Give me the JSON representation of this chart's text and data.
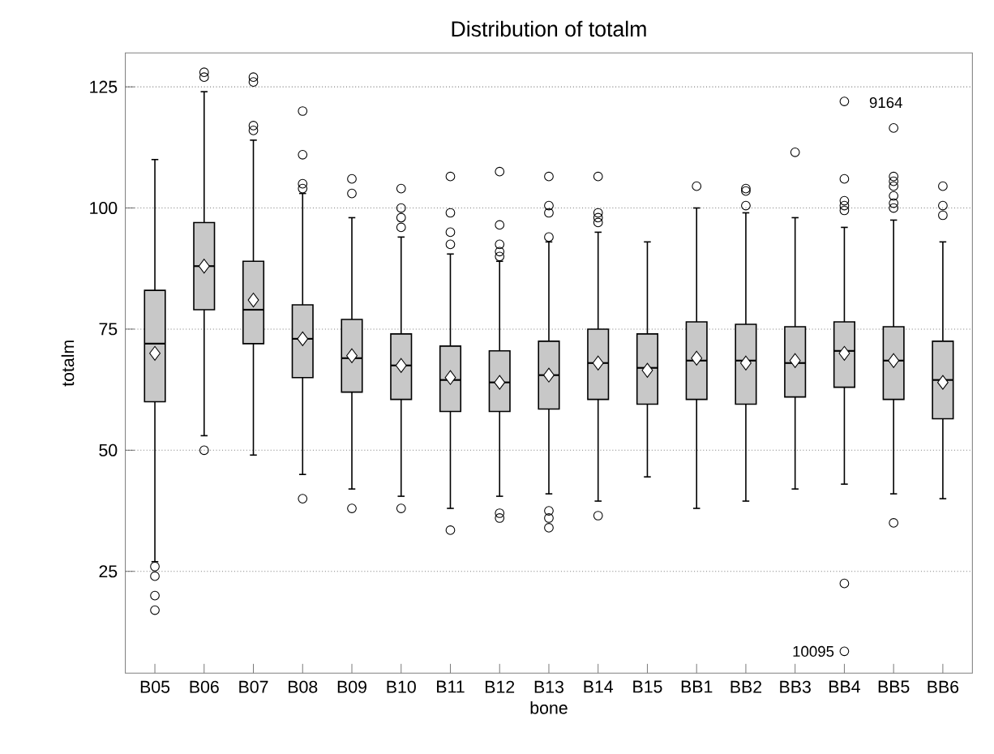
{
  "chart_data": {
    "type": "box",
    "title": "Distribution of totalm",
    "xlabel": "bone",
    "ylabel": "totalm",
    "categories": [
      "B05",
      "B06",
      "B07",
      "B08",
      "B09",
      "B10",
      "B11",
      "B12",
      "B13",
      "B14",
      "B15",
      "BB1",
      "BB2",
      "BB3",
      "BB4",
      "BB5",
      "BB6"
    ],
    "color": "#c8c8c8",
    "boxes": [
      {
        "low": 27,
        "q1": 60,
        "median": 72,
        "q3": 83,
        "high": 110,
        "mean": 70,
        "outliers": [
          26,
          24,
          20,
          17
        ]
      },
      {
        "low": 53,
        "q1": 79,
        "median": 88,
        "q3": 97,
        "high": 124,
        "mean": 88,
        "outliers": [
          128,
          127,
          50
        ]
      },
      {
        "low": 49,
        "q1": 72,
        "median": 79,
        "q3": 89,
        "high": 114,
        "mean": 81,
        "outliers": [
          127,
          126,
          117,
          116
        ]
      },
      {
        "low": 45,
        "q1": 65,
        "median": 73,
        "q3": 80,
        "high": 103,
        "mean": 73,
        "outliers": [
          120,
          111,
          105,
          104,
          40
        ]
      },
      {
        "low": 42,
        "q1": 62,
        "median": 69,
        "q3": 77,
        "high": 98,
        "mean": 69.5,
        "outliers": [
          106,
          103,
          38
        ]
      },
      {
        "low": 40.5,
        "q1": 60.5,
        "median": 67.5,
        "q3": 74,
        "high": 94,
        "mean": 67.5,
        "outliers": [
          104,
          100,
          98,
          96,
          38
        ]
      },
      {
        "low": 38,
        "q1": 58,
        "median": 64.5,
        "q3": 71.5,
        "high": 90.5,
        "mean": 65,
        "outliers": [
          106.5,
          99,
          95,
          92.5,
          33.5
        ]
      },
      {
        "low": 40.5,
        "q1": 58,
        "median": 64,
        "q3": 70.5,
        "high": 89,
        "mean": 64,
        "outliers": [
          107.5,
          96.5,
          92.5,
          91,
          90,
          37,
          36
        ]
      },
      {
        "low": 41,
        "q1": 58.5,
        "median": 65.5,
        "q3": 72.5,
        "high": 93,
        "mean": 65.5,
        "outliers": [
          106.5,
          100.5,
          99,
          94,
          37.5,
          36,
          34
        ]
      },
      {
        "low": 39.5,
        "q1": 60.5,
        "median": 68,
        "q3": 75,
        "high": 95,
        "mean": 68,
        "outliers": [
          106.5,
          99,
          98,
          97,
          36.5
        ]
      },
      {
        "low": 44.5,
        "q1": 59.5,
        "median": 67,
        "q3": 74,
        "high": 93,
        "mean": 66.5
      },
      {
        "low": 38,
        "q1": 60.5,
        "median": 68.5,
        "q3": 76.5,
        "high": 100,
        "mean": 69,
        "outliers": [
          104.5
        ]
      },
      {
        "low": 39.5,
        "q1": 59.5,
        "median": 68.5,
        "q3": 76,
        "high": 99,
        "mean": 68,
        "outliers": [
          104,
          103.5,
          100.5
        ]
      },
      {
        "low": 42,
        "q1": 61,
        "median": 68,
        "q3": 75.5,
        "high": 98,
        "mean": 68.5,
        "outliers": [
          111.5
        ]
      },
      {
        "low": 43,
        "q1": 63,
        "median": 70.5,
        "q3": 76.5,
        "high": 96,
        "mean": 70,
        "outliers": [
          122,
          106,
          101.5,
          100.5,
          99.5,
          22.5,
          8.5
        ]
      },
      {
        "low": 41,
        "q1": 60.5,
        "median": 68.5,
        "q3": 75.5,
        "high": 97.5,
        "mean": 68.5,
        "outliers": [
          116.5,
          106.5,
          105.5,
          104.5,
          102.5,
          101,
          100,
          35
        ]
      },
      {
        "low": 40,
        "q1": 56.5,
        "median": 64.5,
        "q3": 72.5,
        "high": 93,
        "mean": 64,
        "outliers": [
          104.5,
          100.5,
          98.5
        ]
      }
    ],
    "ylim": [
      4,
      132
    ],
    "yticks": [
      25,
      50,
      75,
      100,
      125
    ],
    "grid": "y",
    "marker": "circle",
    "annotations": [
      "9164",
      "10095"
    ]
  }
}
